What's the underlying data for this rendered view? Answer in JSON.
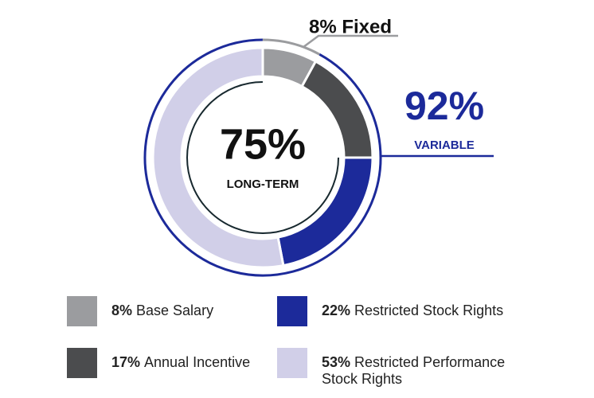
{
  "chart_data": {
    "type": "pie",
    "donut": true,
    "categories": [
      "Base Salary",
      "Annual Incentive",
      "Restricted Stock Rights",
      "Restricted Performance Stock Rights"
    ],
    "values": [
      8,
      17,
      22,
      53
    ],
    "value_labels": [
      "8%",
      "17%",
      "22%",
      "53%"
    ],
    "colors": [
      "#9b9c9f",
      "#4b4c4e",
      "#1c2a9a",
      "#d1cfe8"
    ],
    "annotations": {
      "fixed": "8% Fixed",
      "variable_value": "92%",
      "variable_label": "VARIABLE",
      "center_value": "75%",
      "center_label": "LONG-TERM"
    }
  }
}
